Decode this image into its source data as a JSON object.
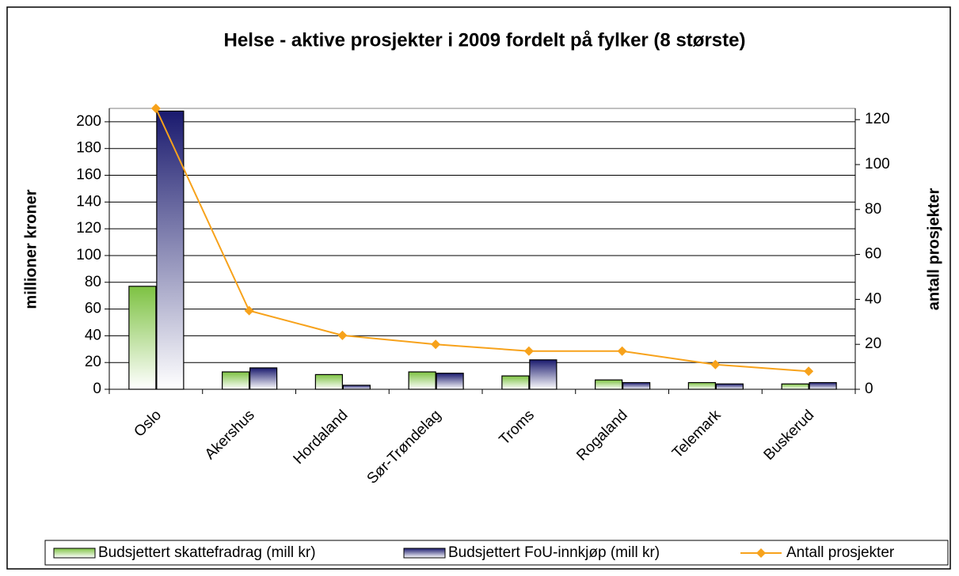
{
  "chart_data": {
    "type": "bar",
    "title": "Helse - aktive prosjekter i 2009 fordelt på fylker (8 største)",
    "ylabel": "millioner kroner",
    "y2label": "antall prosjekter",
    "categories": [
      "Oslo",
      "Akershus",
      "Hordaland",
      "Sør-Trøndelag",
      "Troms",
      "Rogaland",
      "Telemark",
      "Buskerud"
    ],
    "series": [
      {
        "name": "Budsjettert skattefradrag (mill kr)",
        "color": "#7dc242",
        "values": [
          77,
          13,
          11,
          13,
          10,
          7,
          5,
          4
        ]
      },
      {
        "name": "Budsjettert FoU-innkjøp (mill kr)",
        "color": "#1a1a6e",
        "values": [
          208,
          16,
          3,
          12,
          22,
          5,
          4,
          5
        ]
      },
      {
        "name": "Antall prosjekter",
        "color": "#f7a21b",
        "type": "line",
        "axis": "y2",
        "values": [
          125,
          35,
          24,
          20,
          17,
          17,
          11,
          8
        ]
      }
    ],
    "ylim": [
      0,
      210
    ],
    "yticks": [
      0,
      20,
      40,
      60,
      80,
      100,
      120,
      140,
      160,
      180,
      200
    ],
    "y2lim": [
      0,
      125
    ],
    "y2ticks": [
      0,
      20,
      40,
      60,
      80,
      100,
      120
    ],
    "grid": true,
    "legend": "bottom"
  }
}
